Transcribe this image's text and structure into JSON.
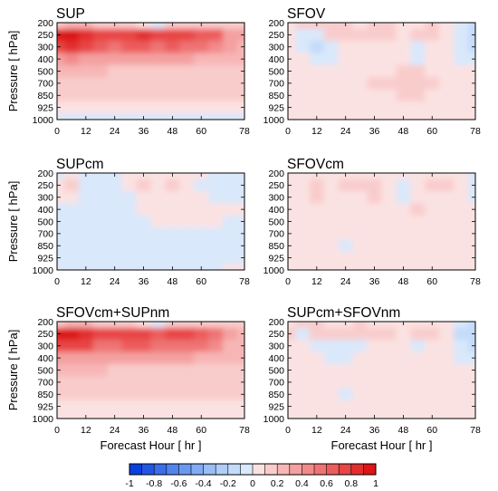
{
  "chart_data": [
    {
      "type": "heatmap",
      "title": "SUP",
      "ylabel": "Pressure [ hPa]",
      "xlabel": "",
      "x_ticks": [
        "0",
        "12",
        "24",
        "36",
        "48",
        "60",
        "78"
      ],
      "y_ticks": [
        "200",
        "250",
        "300",
        "400",
        "500",
        "700",
        "850",
        "925",
        "1000"
      ],
      "x": [
        0,
        6,
        12,
        18,
        24,
        30,
        36,
        42,
        48,
        54,
        60,
        66,
        72,
        78
      ],
      "y": [
        "200",
        "250",
        "300",
        "400",
        "500",
        "700",
        "850",
        "925",
        "1000"
      ],
      "z": [
        [
          0.15,
          0.2,
          0.2,
          0.18,
          0.15,
          0.12,
          0.05,
          -0.1,
          0.1,
          0.15,
          0.15,
          0.12,
          0.1,
          0.1
        ],
        [
          0.9,
          0.95,
          0.85,
          0.75,
          0.7,
          0.75,
          0.85,
          0.7,
          0.75,
          0.7,
          0.65,
          0.6,
          0.35,
          0.3
        ],
        [
          0.7,
          0.8,
          0.75,
          0.6,
          0.55,
          0.6,
          0.65,
          0.55,
          0.6,
          0.55,
          0.5,
          0.45,
          0.3,
          0.25
        ],
        [
          0.35,
          0.4,
          0.35,
          0.3,
          0.3,
          0.3,
          0.3,
          0.3,
          0.3,
          0.3,
          0.25,
          0.25,
          0.2,
          0.2
        ],
        [
          0.2,
          0.2,
          0.2,
          0.2,
          0.18,
          0.18,
          0.18,
          0.18,
          0.18,
          0.18,
          0.15,
          0.15,
          0.15,
          0.15
        ],
        [
          0.12,
          0.12,
          0.12,
          0.12,
          0.12,
          0.12,
          0.12,
          0.12,
          0.12,
          0.12,
          0.12,
          0.12,
          0.12,
          0.12
        ],
        [
          0.1,
          0.1,
          0.1,
          0.1,
          0.1,
          0.1,
          0.1,
          0.1,
          0.1,
          0.1,
          0.1,
          0.1,
          0.1,
          0.1
        ],
        [
          0.05,
          0.05,
          0.05,
          0.05,
          0.05,
          0.05,
          0.05,
          0.05,
          0.05,
          0.05,
          0.05,
          0.05,
          0.05,
          0.05
        ],
        [
          -0.1,
          -0.1,
          -0.05,
          -0.05,
          -0.05,
          -0.05,
          -0.05,
          -0.05,
          -0.05,
          -0.05,
          -0.05,
          -0.05,
          -0.05,
          -0.05
        ]
      ]
    },
    {
      "type": "heatmap",
      "title": "SFOV",
      "ylabel": "",
      "xlabel": "",
      "x_ticks": [
        "0",
        "12",
        "24",
        "36",
        "48",
        "60",
        "78"
      ],
      "y_ticks": [
        "200",
        "250",
        "300",
        "400",
        "500",
        "700",
        "850",
        "925",
        "1000"
      ],
      "x": [
        0,
        6,
        12,
        18,
        24,
        30,
        36,
        42,
        48,
        54,
        60,
        66,
        72,
        78
      ],
      "y": [
        "200",
        "250",
        "300",
        "400",
        "500",
        "700",
        "850",
        "925",
        "1000"
      ],
      "z": [
        [
          0.05,
          0.1,
          0.15,
          0.1,
          0.1,
          0.05,
          0.1,
          0.1,
          0.05,
          0.05,
          0.1,
          0.05,
          -0.1,
          -0.15
        ],
        [
          0.05,
          -0.1,
          -0.1,
          0.1,
          0.15,
          0.1,
          0.15,
          0.1,
          0.05,
          0.1,
          0.1,
          0.05,
          -0.1,
          -0.2
        ],
        [
          0.05,
          -0.1,
          -0.15,
          -0.05,
          0.05,
          0.05,
          0.05,
          0.05,
          0.05,
          -0.05,
          0.05,
          0.05,
          -0.1,
          -0.2
        ],
        [
          0.05,
          0.05,
          -0.1,
          -0.05,
          0.05,
          0.05,
          0.05,
          0.05,
          0.05,
          -0.05,
          0.05,
          0.05,
          -0.05,
          -0.1
        ],
        [
          0.05,
          0.05,
          0.05,
          0.05,
          0.05,
          0.05,
          0.05,
          0.05,
          0.1,
          0.1,
          0.05,
          0.05,
          0.05,
          0.05
        ],
        [
          0.05,
          0.05,
          0.05,
          0.05,
          0.05,
          0.05,
          0.1,
          0.1,
          0.15,
          0.15,
          0.1,
          0.05,
          0.05,
          0.05
        ],
        [
          0.05,
          0.05,
          0.05,
          0.05,
          0.05,
          0.05,
          0.05,
          0.05,
          0.1,
          0.1,
          0.05,
          0.05,
          0.05,
          0.05
        ],
        [
          0.05,
          0.05,
          0.05,
          0.05,
          0.05,
          0.05,
          0.05,
          0.05,
          0.05,
          0.05,
          0.05,
          0.05,
          0.05,
          0.05
        ],
        [
          0.05,
          0.05,
          0.05,
          0.05,
          0.05,
          0.05,
          0.05,
          0.05,
          0.05,
          0.05,
          0.05,
          0.05,
          0.05,
          0.05
        ]
      ]
    },
    {
      "type": "heatmap",
      "title": "SUPcm",
      "ylabel": "Pressure [ hPa]",
      "xlabel": "",
      "x_ticks": [
        "0",
        "12",
        "24",
        "36",
        "48",
        "60",
        "78"
      ],
      "y_ticks": [
        "200",
        "250",
        "300",
        "400",
        "500",
        "700",
        "850",
        "925",
        "1000"
      ],
      "x": [
        0,
        6,
        12,
        18,
        24,
        30,
        36,
        42,
        48,
        54,
        60,
        66,
        72,
        78
      ],
      "y": [
        "200",
        "250",
        "300",
        "400",
        "500",
        "700",
        "850",
        "925",
        "1000"
      ],
      "z": [
        [
          -0.05,
          0.05,
          -0.05,
          -0.05,
          -0.05,
          0.05,
          0.05,
          0.05,
          0.05,
          0.05,
          0.05,
          -0.05,
          -0.05,
          -0.05
        ],
        [
          0.05,
          0.1,
          -0.05,
          -0.05,
          -0.05,
          0.05,
          0.1,
          0.05,
          0.1,
          0.05,
          -0.05,
          -0.05,
          -0.05,
          -0.05
        ],
        [
          0.05,
          0.05,
          -0.05,
          -0.05,
          -0.05,
          -0.05,
          0.05,
          0.05,
          0.05,
          0.05,
          0.05,
          -0.05,
          -0.05,
          -0.05
        ],
        [
          -0.05,
          -0.05,
          -0.05,
          -0.05,
          -0.05,
          -0.05,
          0.05,
          0.05,
          0.05,
          0.05,
          0.05,
          0.05,
          0.05,
          0.05
        ],
        [
          -0.05,
          -0.05,
          -0.05,
          -0.05,
          -0.05,
          -0.05,
          -0.05,
          0.05,
          0.05,
          0.05,
          0.05,
          0.05,
          -0.05,
          -0.05
        ],
        [
          -0.05,
          -0.05,
          -0.05,
          -0.05,
          -0.05,
          -0.05,
          -0.05,
          -0.05,
          -0.05,
          -0.05,
          -0.05,
          -0.05,
          -0.05,
          -0.05
        ],
        [
          -0.05,
          -0.05,
          -0.05,
          -0.05,
          -0.05,
          -0.05,
          -0.05,
          -0.05,
          -0.05,
          -0.05,
          -0.05,
          -0.05,
          -0.05,
          -0.05
        ],
        [
          -0.05,
          -0.05,
          -0.05,
          -0.05,
          -0.05,
          -0.05,
          -0.05,
          -0.05,
          -0.05,
          -0.05,
          -0.05,
          -0.05,
          -0.05,
          -0.05
        ],
        [
          -0.05,
          -0.05,
          -0.05,
          -0.05,
          -0.05,
          -0.05,
          -0.05,
          -0.05,
          -0.05,
          -0.05,
          -0.05,
          -0.05,
          0.05,
          0.05
        ]
      ]
    },
    {
      "type": "heatmap",
      "title": "SFOVcm",
      "ylabel": "",
      "xlabel": "",
      "x_ticks": [
        "0",
        "12",
        "24",
        "36",
        "48",
        "60",
        "78"
      ],
      "y_ticks": [
        "200",
        "250",
        "300",
        "400",
        "500",
        "700",
        "850",
        "925",
        "1000"
      ],
      "x": [
        0,
        6,
        12,
        18,
        24,
        30,
        36,
        42,
        48,
        54,
        60,
        66,
        72,
        78
      ],
      "y": [
        "200",
        "250",
        "300",
        "400",
        "500",
        "700",
        "850",
        "925",
        "1000"
      ],
      "z": [
        [
          0.05,
          0.05,
          0.05,
          0.05,
          0.05,
          0.05,
          0.05,
          0.05,
          0.05,
          0.05,
          0.05,
          0.05,
          0.05,
          -0.05
        ],
        [
          0.05,
          0.05,
          0.15,
          0.05,
          0.15,
          0.1,
          0.15,
          0.05,
          -0.1,
          0.05,
          0.1,
          0.1,
          0.05,
          -0.1
        ],
        [
          0.05,
          0.05,
          0.1,
          0.05,
          0.05,
          0.05,
          0.1,
          0.05,
          -0.05,
          0.05,
          0.05,
          0.05,
          0.05,
          -0.1
        ],
        [
          0.05,
          0.05,
          0.05,
          0.05,
          0.05,
          0.05,
          0.05,
          0.05,
          0.05,
          0.1,
          0.05,
          0.05,
          0.05,
          0.05
        ],
        [
          0.05,
          0.05,
          0.05,
          0.05,
          0.05,
          0.05,
          0.05,
          0.05,
          0.05,
          0.05,
          0.05,
          0.05,
          0.05,
          0.05
        ],
        [
          0.05,
          0.05,
          0.05,
          0.05,
          0.05,
          0.05,
          0.05,
          0.05,
          0.05,
          0.05,
          0.05,
          0.05,
          0.05,
          0.05
        ],
        [
          0.05,
          0.05,
          0.05,
          0.05,
          -0.1,
          0.05,
          0.05,
          0.05,
          0.05,
          0.05,
          0.05,
          0.05,
          0.05,
          0.05
        ],
        [
          0.05,
          0.05,
          0.05,
          0.05,
          0.05,
          0.05,
          0.05,
          0.05,
          0.05,
          0.05,
          0.05,
          0.05,
          0.05,
          0.05
        ],
        [
          0.05,
          0.05,
          0.05,
          0.05,
          0.05,
          0.05,
          0.05,
          0.05,
          0.05,
          0.05,
          0.05,
          0.05,
          0.05,
          0.05
        ]
      ]
    },
    {
      "type": "heatmap",
      "title": "SFOVcm+SUPnm",
      "ylabel": "Pressure [ hPa]",
      "xlabel": "Forecast Hour [ hr ]",
      "x_ticks": [
        "0",
        "12",
        "24",
        "36",
        "48",
        "60",
        "78"
      ],
      "y_ticks": [
        "200",
        "250",
        "300",
        "400",
        "500",
        "700",
        "850",
        "925",
        "1000"
      ],
      "x": [
        0,
        6,
        12,
        18,
        24,
        30,
        36,
        42,
        48,
        54,
        60,
        66,
        72,
        78
      ],
      "y": [
        "200",
        "250",
        "300",
        "400",
        "500",
        "700",
        "850",
        "925",
        "1000"
      ],
      "z": [
        [
          0.15,
          0.2,
          0.2,
          0.15,
          0.15,
          0.1,
          0.05,
          -0.1,
          0.1,
          0.1,
          0.15,
          0.1,
          0.1,
          0.1
        ],
        [
          0.9,
          0.95,
          0.85,
          0.7,
          0.7,
          0.75,
          0.75,
          0.65,
          0.7,
          0.7,
          0.65,
          0.55,
          0.3,
          0.25
        ],
        [
          0.7,
          0.75,
          0.7,
          0.55,
          0.55,
          0.6,
          0.6,
          0.5,
          0.55,
          0.55,
          0.5,
          0.45,
          0.25,
          0.2
        ],
        [
          0.35,
          0.35,
          0.3,
          0.3,
          0.3,
          0.3,
          0.3,
          0.3,
          0.3,
          0.3,
          0.25,
          0.25,
          0.2,
          0.2
        ],
        [
          0.2,
          0.2,
          0.2,
          0.2,
          0.18,
          0.18,
          0.18,
          0.18,
          0.18,
          0.18,
          0.15,
          0.15,
          0.15,
          0.15
        ],
        [
          0.12,
          0.12,
          0.12,
          0.12,
          0.12,
          0.12,
          0.12,
          0.12,
          0.12,
          0.12,
          0.12,
          0.12,
          0.12,
          0.12
        ],
        [
          0.1,
          0.1,
          0.1,
          0.1,
          0.1,
          0.1,
          0.1,
          0.1,
          0.1,
          0.1,
          0.1,
          0.1,
          0.1,
          0.1
        ],
        [
          0.08,
          0.08,
          0.08,
          0.08,
          0.08,
          0.08,
          0.08,
          0.08,
          0.08,
          0.08,
          0.08,
          0.08,
          0.08,
          0.08
        ],
        [
          0.05,
          0.05,
          0.05,
          0.05,
          0.05,
          0.05,
          0.05,
          0.05,
          0.05,
          0.05,
          0.05,
          0.05,
          0.05,
          0.05
        ]
      ]
    },
    {
      "type": "heatmap",
      "title": "SUPcm+SFOVnm",
      "ylabel": "",
      "xlabel": "Forecast Hour [ hr ]",
      "x_ticks": [
        "0",
        "12",
        "24",
        "36",
        "48",
        "60",
        "78"
      ],
      "y_ticks": [
        "200",
        "250",
        "300",
        "400",
        "500",
        "700",
        "850",
        "925",
        "1000"
      ],
      "x": [
        0,
        6,
        12,
        18,
        24,
        30,
        36,
        42,
        48,
        54,
        60,
        66,
        72,
        78
      ],
      "y": [
        "200",
        "250",
        "300",
        "400",
        "500",
        "700",
        "850",
        "925",
        "1000"
      ],
      "z": [
        [
          0.05,
          0.1,
          0.1,
          0.05,
          0.05,
          0.1,
          0.05,
          0.05,
          0.05,
          0.05,
          0.05,
          0.05,
          -0.1,
          -0.15
        ],
        [
          0.1,
          -0.05,
          0.1,
          0.1,
          0.15,
          0.1,
          0.15,
          0.1,
          0.05,
          0.1,
          0.1,
          0.05,
          -0.15,
          -0.2
        ],
        [
          0.05,
          0.05,
          -0.05,
          -0.05,
          -0.1,
          -0.05,
          0.05,
          0.05,
          0.05,
          -0.05,
          0.05,
          0.05,
          -0.1,
          -0.2
        ],
        [
          0.05,
          0.05,
          0.05,
          -0.05,
          -0.05,
          0.05,
          0.05,
          0.05,
          0.05,
          0.05,
          0.05,
          0.05,
          -0.05,
          -0.1
        ],
        [
          0.05,
          0.05,
          0.05,
          0.05,
          0.05,
          0.05,
          0.05,
          0.05,
          0.05,
          0.05,
          0.05,
          0.05,
          0.05,
          0.05
        ],
        [
          0.05,
          0.05,
          0.05,
          0.05,
          0.05,
          0.05,
          0.05,
          0.05,
          0.05,
          0.05,
          0.05,
          0.05,
          0.05,
          0.05
        ],
        [
          0.05,
          0.05,
          0.05,
          0.05,
          -0.05,
          0.05,
          0.05,
          0.05,
          0.05,
          0.05,
          0.05,
          0.05,
          0.05,
          0.05
        ],
        [
          0.05,
          0.05,
          0.05,
          0.05,
          0.05,
          0.05,
          0.05,
          0.05,
          0.05,
          0.05,
          0.05,
          0.05,
          0.05,
          0.05
        ],
        [
          0.05,
          0.05,
          0.05,
          0.05,
          0.05,
          0.05,
          0.05,
          0.05,
          0.05,
          0.05,
          0.05,
          0.05,
          0.05,
          0.05
        ]
      ]
    }
  ],
  "colorbar": {
    "ticks": [
      "-1",
      "-0.8",
      "-0.6",
      "-0.4",
      "-0.2",
      "0",
      "0.2",
      "0.4",
      "0.6",
      "0.8",
      "1"
    ],
    "levels": [
      -1,
      -0.9,
      -0.8,
      -0.7,
      -0.6,
      -0.5,
      -0.4,
      -0.3,
      -0.2,
      -0.1,
      0,
      0.1,
      0.2,
      0.3,
      0.4,
      0.5,
      0.6,
      0.7,
      0.8,
      0.9,
      1
    ],
    "colors": [
      "#0a3fe0",
      "#2257e6",
      "#3a6eea",
      "#5284ee",
      "#6a98f1",
      "#82abf3",
      "#99bdf5",
      "#afcdf7",
      "#c4dbf9",
      "#d9e8fb",
      "#fbe2e2",
      "#f9cccc",
      "#f7b6b6",
      "#f4a0a0",
      "#f28a8a",
      "#ef7373",
      "#ec5c5c",
      "#e84545",
      "#e22e2e",
      "#dc1515"
    ]
  }
}
